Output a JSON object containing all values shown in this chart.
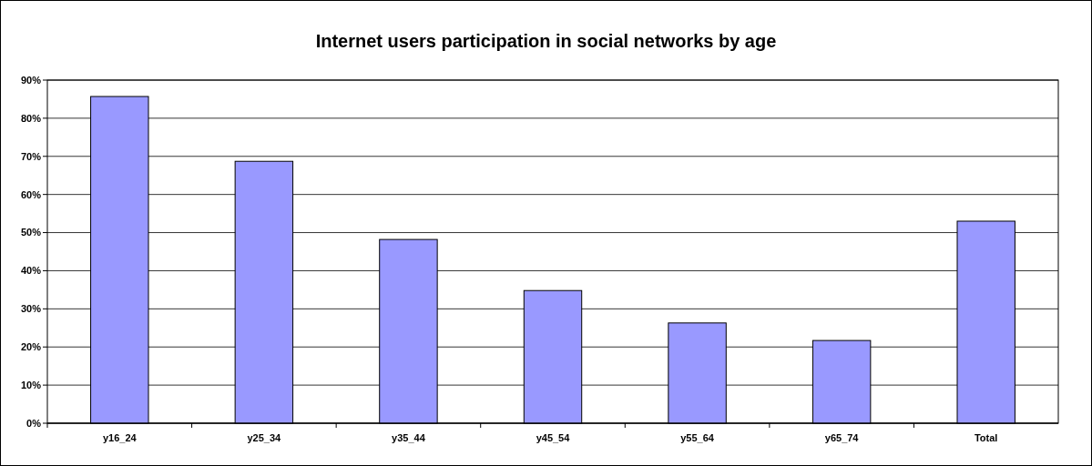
{
  "chart_data": {
    "type": "bar",
    "title": "Internet users participation in social networks by age",
    "categories": [
      "y16_24",
      "y25_34",
      "y35_44",
      "y45_54",
      "y55_64",
      "y65_74",
      "Total"
    ],
    "values": [
      85.7,
      68.7,
      48.2,
      34.8,
      26.3,
      21.7,
      53
    ],
    "color": "#9999ff",
    "ylim": [
      0,
      90
    ],
    "yticks": [
      {
        "value": 0,
        "label": "0%"
      },
      {
        "value": 10,
        "label": "10%"
      },
      {
        "value": 20,
        "label": "20%"
      },
      {
        "value": 30,
        "label": "30%"
      },
      {
        "value": 40,
        "label": "40%"
      },
      {
        "value": 50,
        "label": "50%"
      },
      {
        "value": 60,
        "label": "60%"
      },
      {
        "value": 70,
        "label": "70%"
      },
      {
        "value": 80,
        "label": "80%"
      },
      {
        "value": 90,
        "label": "90%"
      }
    ],
    "grid": "y"
  }
}
